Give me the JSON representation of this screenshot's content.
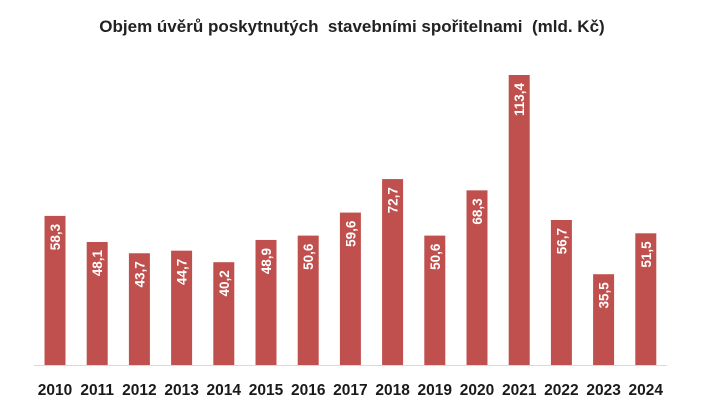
{
  "chart_data": {
    "type": "bar",
    "title": "Objem úvěrů poskytnutých  stavebními spořitelnami  (mld. Kč)",
    "xlabel": "",
    "ylabel": "",
    "categories": [
      "2010",
      "2011",
      "2012",
      "2013",
      "2014",
      "2015",
      "2016",
      "2017",
      "2018",
      "2019",
      "2020",
      "2021",
      "2022",
      "2023",
      "2024"
    ],
    "values": [
      58.3,
      48.1,
      43.7,
      44.7,
      40.2,
      48.9,
      50.6,
      59.6,
      72.7,
      50.6,
      68.3,
      113.4,
      56.7,
      35.5,
      51.5
    ],
    "value_labels": [
      "58,3",
      "48,1",
      "43,7",
      "44,7",
      "40,2",
      "48,9",
      "50,6",
      "59,6",
      "72,7",
      "50,6",
      "68,3",
      "113,4",
      "56,7",
      "35,5",
      "51,5"
    ],
    "ylim": [
      0,
      113.4
    ],
    "grid": false,
    "legend": "none",
    "bar_color": "#c0504d",
    "axis_color": "#d9d9d9"
  }
}
